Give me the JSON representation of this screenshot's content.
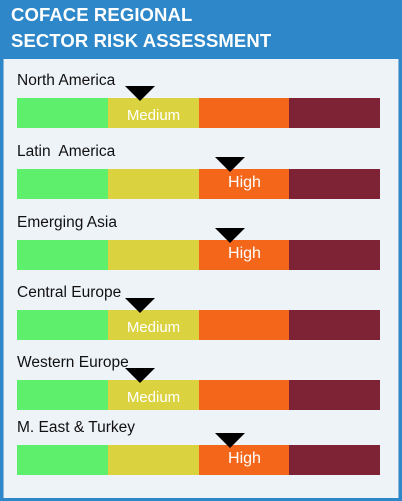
{
  "header": {
    "title_line1": "COFACE REGIONAL",
    "title_line2": "SECTOR RISK ASSESSMENT"
  },
  "colors": {
    "header_bg": "#2e87c8",
    "panel_bg": "#eef3f8",
    "low": "#5ef06d",
    "medium": "#dbd23f",
    "high": "#f46619",
    "very_high": "#7d2335",
    "marker": "#000000"
  },
  "rows": [
    {
      "region": "North America",
      "rating": "Medium"
    },
    {
      "region": "Latin  America",
      "rating": "High"
    },
    {
      "region": "Emerging Asia",
      "rating": "High"
    },
    {
      "region": "Central Europe",
      "rating": "Medium"
    },
    {
      "region": "Western Europe",
      "rating": "Medium"
    },
    {
      "region": "M. East & Turkey",
      "rating": "High"
    }
  ]
}
